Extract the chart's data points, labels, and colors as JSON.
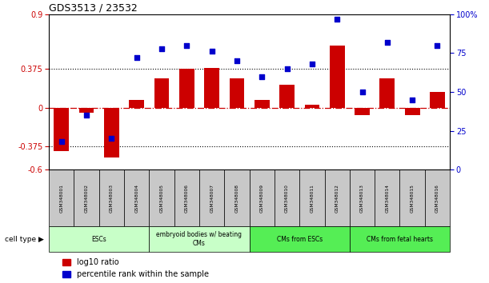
{
  "title": "GDS3513 / 23532",
  "samples": [
    "GSM348001",
    "GSM348002",
    "GSM348003",
    "GSM348004",
    "GSM348005",
    "GSM348006",
    "GSM348007",
    "GSM348008",
    "GSM348009",
    "GSM348010",
    "GSM348011",
    "GSM348012",
    "GSM348013",
    "GSM348014",
    "GSM348015",
    "GSM348016"
  ],
  "log10_ratio": [
    -0.42,
    -0.05,
    -0.48,
    0.07,
    0.28,
    0.37,
    0.38,
    0.28,
    0.07,
    0.22,
    0.03,
    0.6,
    -0.07,
    0.28,
    -0.07,
    0.15
  ],
  "percentile_rank": [
    18,
    35,
    20,
    72,
    78,
    80,
    76,
    70,
    60,
    65,
    68,
    97,
    50,
    82,
    45,
    80
  ],
  "cell_type_groups": [
    {
      "label": "ESCs",
      "start": 0,
      "end": 4,
      "color": "#c8ffc8"
    },
    {
      "label": "embryoid bodies w/ beating\nCMs",
      "start": 4,
      "end": 8,
      "color": "#c8ffc8"
    },
    {
      "label": "CMs from ESCs",
      "start": 8,
      "end": 12,
      "color": "#55ee55"
    },
    {
      "label": "CMs from fetal hearts",
      "start": 12,
      "end": 16,
      "color": "#55ee55"
    }
  ],
  "bar_color": "#cc0000",
  "scatter_color": "#0000cc",
  "left_ylim": [
    -0.6,
    0.9
  ],
  "right_ylim": [
    0,
    100
  ],
  "left_yticks": [
    -0.6,
    -0.375,
    0,
    0.375,
    0.9
  ],
  "right_yticks": [
    0,
    25,
    50,
    75,
    100
  ],
  "right_yticklabels": [
    "0",
    "25",
    "50",
    "75",
    "100%"
  ],
  "hlines": [
    0.375,
    -0.375
  ],
  "bar_width": 0.6,
  "legend_ratio_label": "log10 ratio",
  "legend_pct_label": "percentile rank within the sample",
  "cell_type_label": "cell type"
}
